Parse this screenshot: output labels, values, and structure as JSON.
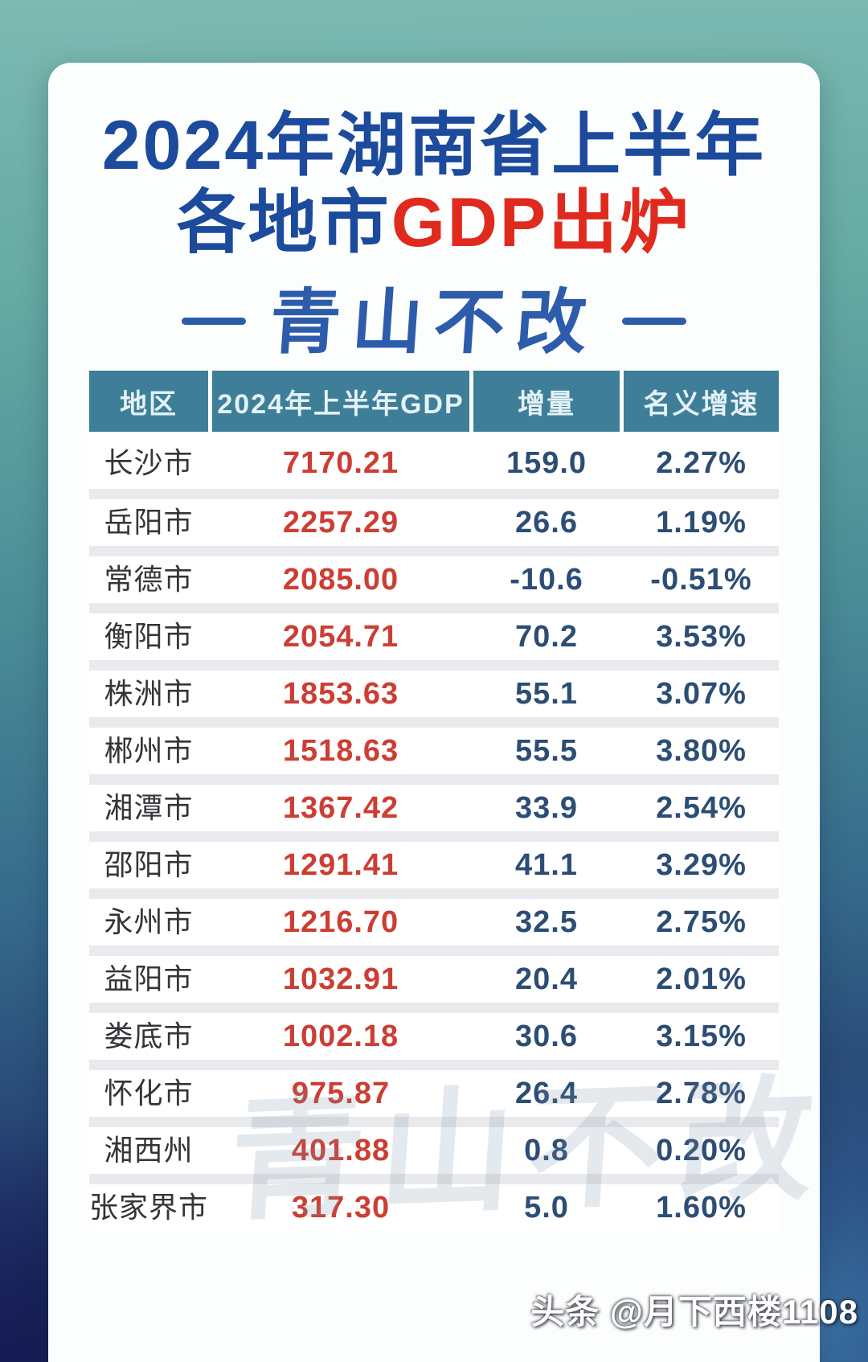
{
  "title": {
    "line1": "2024年湖南省上半年",
    "line2_blue": "各地市",
    "line2_red": "GDP出炉",
    "motto": "青山不改"
  },
  "table": {
    "columns": [
      "地区",
      "2024年上半年GDP",
      "增量",
      "名义增速"
    ],
    "rows": [
      {
        "region": "长沙市",
        "gdp": "7170.21",
        "delta": "159.0",
        "growth": "2.27%"
      },
      {
        "region": "岳阳市",
        "gdp": "2257.29",
        "delta": "26.6",
        "growth": "1.19%"
      },
      {
        "region": "常德市",
        "gdp": "2085.00",
        "delta": "-10.6",
        "growth": "-0.51%"
      },
      {
        "region": "衡阳市",
        "gdp": "2054.71",
        "delta": "70.2",
        "growth": "3.53%"
      },
      {
        "region": "株洲市",
        "gdp": "1853.63",
        "delta": "55.1",
        "growth": "3.07%"
      },
      {
        "region": "郴州市",
        "gdp": "1518.63",
        "delta": "55.5",
        "growth": "3.80%"
      },
      {
        "region": "湘潭市",
        "gdp": "1367.42",
        "delta": "33.9",
        "growth": "2.54%"
      },
      {
        "region": "邵阳市",
        "gdp": "1291.41",
        "delta": "41.1",
        "growth": "3.29%"
      },
      {
        "region": "永州市",
        "gdp": "1216.70",
        "delta": "32.5",
        "growth": "2.75%"
      },
      {
        "region": "益阳市",
        "gdp": "1032.91",
        "delta": "20.4",
        "growth": "2.01%"
      },
      {
        "region": "娄底市",
        "gdp": "1002.18",
        "delta": "30.6",
        "growth": "3.15%"
      },
      {
        "region": "怀化市",
        "gdp": "975.87",
        "delta": "26.4",
        "growth": "2.78%"
      },
      {
        "region": "湘西州",
        "gdp": "401.88",
        "delta": "0.8",
        "growth": "0.20%"
      },
      {
        "region": "张家界市",
        "gdp": "317.30",
        "delta": "5.0",
        "growth": "1.60%"
      }
    ]
  },
  "watermark": {
    "background_text": "青山不改",
    "credit": "头条 @月下西楼1108"
  },
  "colors": {
    "title_blue": "#1c4a9c",
    "title_red": "#e02a1e",
    "motto_blue": "#2d5cab",
    "header_bg": "#3e7e98",
    "header_text": "#e4f2f7",
    "gdp_red": "#cc3e33",
    "value_blue": "#2c4d74",
    "row_gap_gray": "#e9eaee",
    "bg_top_teal": "#7cbab2",
    "bg_bottom_navy": "#181f52",
    "bg_bottom_right_blue": "#3d7aac"
  },
  "chart_data": {
    "type": "table",
    "title": "2024年湖南省上半年各地市GDP出炉",
    "subtitle": "青山不改",
    "columns": [
      "地区",
      "2024年上半年GDP",
      "增量",
      "名义增速(%)"
    ],
    "growth_unit": "%",
    "rows": [
      [
        "长沙市",
        7170.21,
        159.0,
        2.27
      ],
      [
        "岳阳市",
        2257.29,
        26.6,
        1.19
      ],
      [
        "常德市",
        2085.0,
        -10.6,
        -0.51
      ],
      [
        "衡阳市",
        2054.71,
        70.2,
        3.53
      ],
      [
        "株洲市",
        1853.63,
        55.1,
        3.07
      ],
      [
        "郴州市",
        1518.63,
        55.5,
        3.8
      ],
      [
        "湘潭市",
        1367.42,
        33.9,
        2.54
      ],
      [
        "邵阳市",
        1291.41,
        41.1,
        3.29
      ],
      [
        "永州市",
        1216.7,
        32.5,
        2.75
      ],
      [
        "益阳市",
        1032.91,
        20.4,
        2.01
      ],
      [
        "娄底市",
        1002.18,
        30.6,
        3.15
      ],
      [
        "怀化市",
        975.87,
        26.4,
        2.78
      ],
      [
        "湘西州",
        401.88,
        0.8,
        0.2
      ],
      [
        "张家界市",
        317.3,
        5.0,
        1.6
      ]
    ]
  }
}
